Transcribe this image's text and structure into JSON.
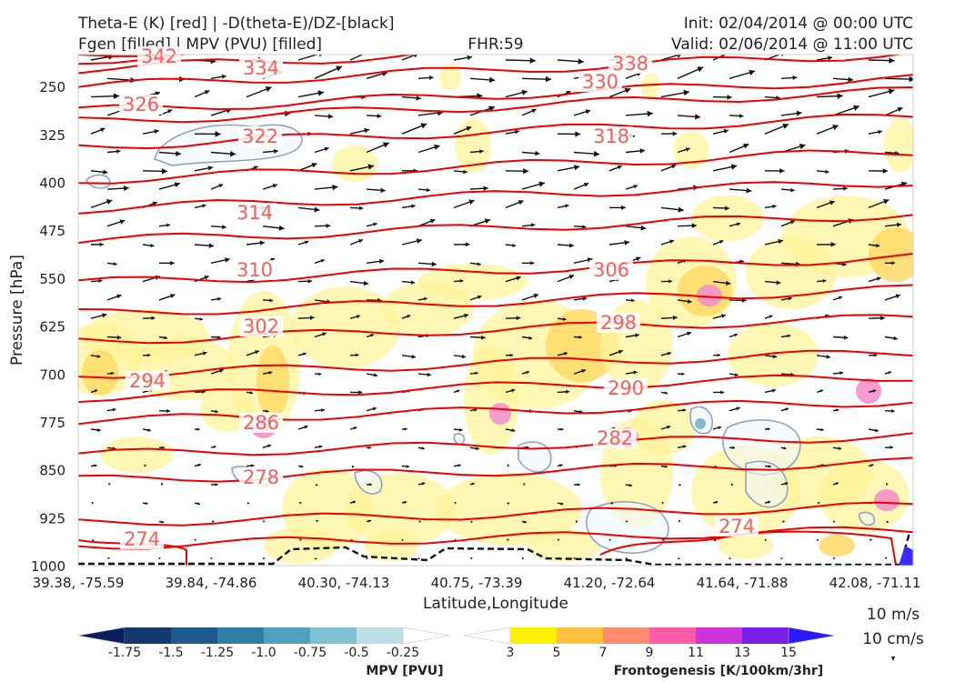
{
  "header": {
    "title_left_1": "Theta-E (K) [red] | -D(theta-E)/DZ-[black]",
    "title_left_2": "Fgen [filled] | MPV (PVU) [filled]",
    "title_center": "FHR:59",
    "title_right_1": "Init: 02/04/2014 @ 00:00 UTC",
    "title_right_2": "Valid: 02/06/2014 @ 11:00 UTC"
  },
  "chart_data": {
    "type": "cross-section",
    "xlabel": "Latitude,Longitude",
    "ylabel": "Pressure [hPa]",
    "ylim": [
      1000,
      200
    ],
    "yticks": [
      250,
      325,
      400,
      475,
      550,
      625,
      700,
      775,
      850,
      925,
      1000
    ],
    "xticks": [
      "39.38, -75.59",
      "39.84, -74.86",
      "40.30, -74.13",
      "40.75, -73.39",
      "41.20, -72.64",
      "41.64, -71.88",
      "42.08, -71.11"
    ],
    "theta_e_lines": [
      {
        "label": "342",
        "pressure": 203
      },
      {
        "label": "334",
        "pressure": 216
      },
      {
        "label": "338",
        "pressure": 214
      },
      {
        "label": "330",
        "pressure": 231
      },
      {
        "label": "326",
        "pressure": 262
      },
      {
        "label": "322",
        "pressure": 298
      },
      {
        "label": "318",
        "pressure": 303
      },
      {
        "label": "314",
        "pressure": 436
      },
      {
        "label": "310",
        "pressure": 547
      },
      {
        "label": "306",
        "pressure": 548
      },
      {
        "label": "302",
        "pressure": 649
      },
      {
        "label": "298",
        "pressure": 639
      },
      {
        "label": "294",
        "pressure": 719
      },
      {
        "label": "290",
        "pressure": 730
      },
      {
        "label": "286",
        "pressure": 790
      },
      {
        "label": "282",
        "pressure": 814
      },
      {
        "label": "278",
        "pressure": 868
      },
      {
        "label": "274",
        "pressure": 970
      },
      {
        "label": "274",
        "pressure": 951
      }
    ],
    "vector_legend": {
      "label_1": "10 m/s",
      "label_2": "10 cm/s"
    },
    "colorbars": {
      "mpv": {
        "title": "MPV [PVU]",
        "ticks": [
          "-1.75",
          "-1.5",
          "-1.25",
          "-1.0",
          "-0.75",
          "-0.5",
          "-0.25"
        ],
        "colors": [
          "#0b1f5e",
          "#14396f",
          "#1f5b8a",
          "#2e7da4",
          "#4f9fbe",
          "#82c0d4",
          "#bcdfe6",
          "#ffffff"
        ]
      },
      "fgen": {
        "title": "Frontogenesis [K/100km/3hr]",
        "ticks": [
          "3",
          "5",
          "7",
          "9",
          "11",
          "13",
          "15"
        ],
        "colors": [
          "#ffffff",
          "#fff200",
          "#ffbf3f",
          "#ff8c6a",
          "#ff5ca8",
          "#cc33d8",
          "#7a1fe6",
          "#2a1aff"
        ]
      }
    },
    "colors": {
      "theta_e": "#ee0000",
      "theta_e_label": "#ff5a5a",
      "arrows": "#111111",
      "mpv_contour": "#8fa3c4",
      "fgen_light": "#fff49a",
      "fgen_mid": "#ffd966",
      "fgen_pink": "#f38ccb"
    }
  }
}
